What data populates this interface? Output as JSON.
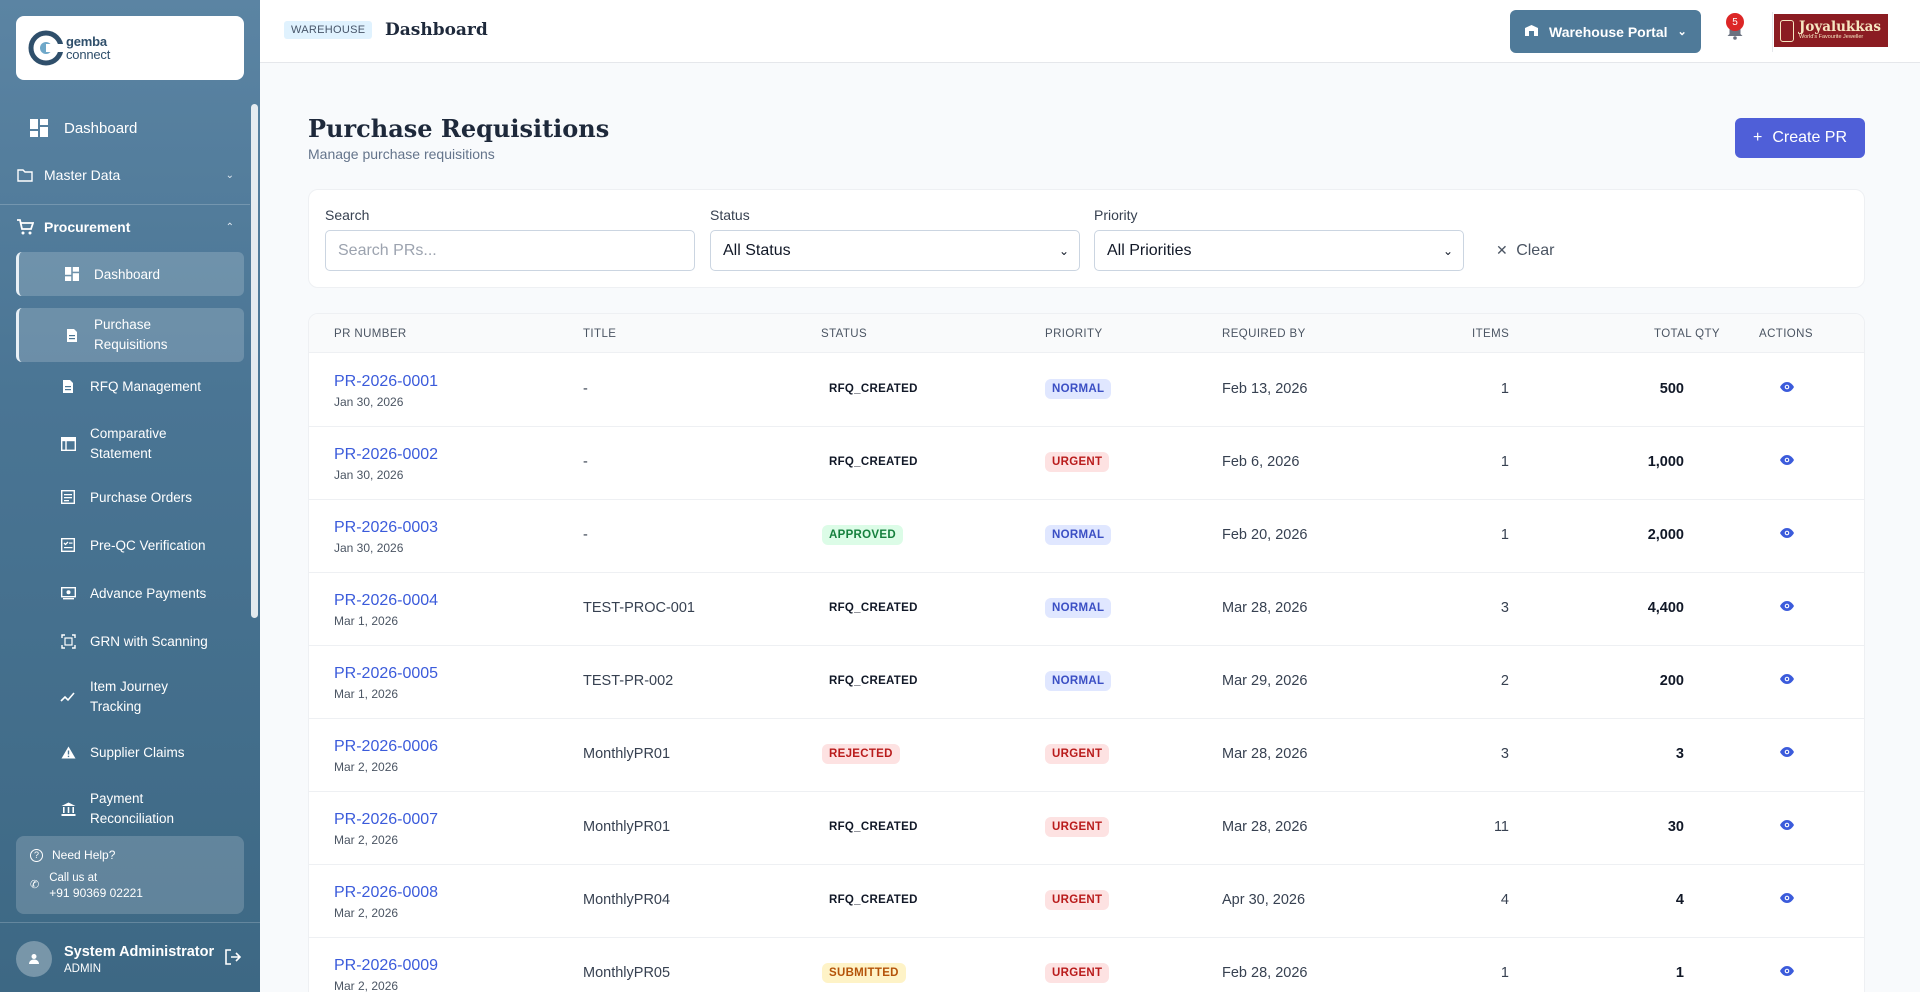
{
  "sidebar": {
    "logo_text_1": "gemba",
    "logo_text_2": "connect",
    "dashboard": "Dashboard",
    "master_data": "Master Data",
    "procurement": "Procurement",
    "sub_items": [
      {
        "label": "Dashboard"
      },
      {
        "label": "Purchase Requisitions"
      },
      {
        "label": "RFQ Management"
      },
      {
        "label": "Comparative Statement"
      },
      {
        "label": "Purchase Orders"
      },
      {
        "label": "Pre-QC Verification"
      },
      {
        "label": "Advance Payments"
      },
      {
        "label": "GRN with Scanning"
      },
      {
        "label": "Item Journey Tracking"
      },
      {
        "label": "Supplier Claims"
      },
      {
        "label": "Payment Reconciliation"
      }
    ],
    "help_title": "Need Help?",
    "help_call": "Call us at",
    "help_phone": "+91 90369 02221",
    "user_name": "System Administrator",
    "user_role": "ADMIN"
  },
  "header": {
    "tag": "WAREHOUSE",
    "title": "Dashboard",
    "portal": "Warehouse Portal",
    "notif_count": "5",
    "brand": "Joyalukkas",
    "brand_tagline": "World's Favourite Jeweller"
  },
  "page": {
    "title": "Purchase Requisitions",
    "subtitle": "Manage purchase requisitions",
    "create_label": "Create PR"
  },
  "filters": {
    "search_label": "Search",
    "search_placeholder": "Search PRs...",
    "status_label": "Status",
    "status_value": "All Status",
    "priority_label": "Priority",
    "priority_value": "All Priorities",
    "clear_label": "Clear"
  },
  "table": {
    "headers": [
      "PR NUMBER",
      "TITLE",
      "STATUS",
      "PRIORITY",
      "REQUIRED BY",
      "ITEMS",
      "TOTAL QTY",
      "ACTIONS"
    ],
    "rows": [
      {
        "pr": "PR-2026-0001",
        "date": "Jan 30, 2026",
        "title": "-",
        "status": "RFQ_CREATED",
        "priority": "NORMAL",
        "required": "Feb 13, 2026",
        "items": "1",
        "qty": "500"
      },
      {
        "pr": "PR-2026-0002",
        "date": "Jan 30, 2026",
        "title": "-",
        "status": "RFQ_CREATED",
        "priority": "URGENT",
        "required": "Feb 6, 2026",
        "items": "1",
        "qty": "1,000"
      },
      {
        "pr": "PR-2026-0003",
        "date": "Jan 30, 2026",
        "title": "-",
        "status": "APPROVED",
        "priority": "NORMAL",
        "required": "Feb 20, 2026",
        "items": "1",
        "qty": "2,000"
      },
      {
        "pr": "PR-2026-0004",
        "date": "Mar 1, 2026",
        "title": "TEST-PROC-001",
        "status": "RFQ_CREATED",
        "priority": "NORMAL",
        "required": "Mar 28, 2026",
        "items": "3",
        "qty": "4,400"
      },
      {
        "pr": "PR-2026-0005",
        "date": "Mar 1, 2026",
        "title": "TEST-PR-002",
        "status": "RFQ_CREATED",
        "priority": "NORMAL",
        "required": "Mar 29, 2026",
        "items": "2",
        "qty": "200"
      },
      {
        "pr": "PR-2026-0006",
        "date": "Mar 2, 2026",
        "title": "MonthlyPR01",
        "status": "REJECTED",
        "priority": "URGENT",
        "required": "Mar 28, 2026",
        "items": "3",
        "qty": "3"
      },
      {
        "pr": "PR-2026-0007",
        "date": "Mar 2, 2026",
        "title": "MonthlyPR01",
        "status": "RFQ_CREATED",
        "priority": "URGENT",
        "required": "Mar 28, 2026",
        "items": "11",
        "qty": "30"
      },
      {
        "pr": "PR-2026-0008",
        "date": "Mar 2, 2026",
        "title": "MonthlyPR04",
        "status": "RFQ_CREATED",
        "priority": "URGENT",
        "required": "Apr 30, 2026",
        "items": "4",
        "qty": "4"
      },
      {
        "pr": "PR-2026-0009",
        "date": "Mar 2, 2026",
        "title": "MonthlyPR05",
        "status": "SUBMITTED",
        "priority": "URGENT",
        "required": "Feb 28, 2026",
        "items": "1",
        "qty": "1"
      }
    ]
  },
  "colors": {
    "sidebar": "#4a7594",
    "accent": "#4f5fd8",
    "link": "#3b5bdb",
    "normal_bg": "#e0e7ff",
    "normal_fg": "#3b4fc4",
    "urgent_bg": "#fde2e2",
    "urgent_fg": "#b91c1c",
    "approved_bg": "#dcfce7",
    "approved_fg": "#15803d",
    "rejected_bg": "#fde2e2",
    "rejected_fg": "#b91c1c",
    "submitted_bg": "#fef3c7",
    "submitted_fg": "#b45309"
  }
}
